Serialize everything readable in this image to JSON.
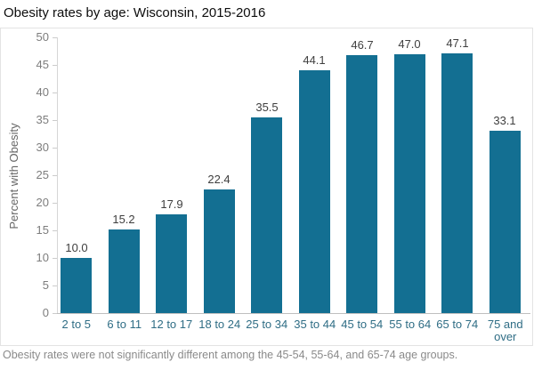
{
  "title": "Obesity rates by age: Wisconsin, 2015-2016",
  "note": "Obesity rates were not significantly different among the 45-54, 55-64, and 65-74 age groups.",
  "colors": {
    "bar": "#136f92",
    "x_label": "#2f6d85",
    "value_label": "#3f3f3f",
    "ytick_label": "#7d7d7d",
    "axis_line": "#bfbfbf",
    "frame_border": "#e3e3e3",
    "note_text": "#8a8a8a"
  },
  "chart_data": {
    "type": "bar",
    "title": "Obesity rates by age: Wisconsin, 2015-2016",
    "categories": [
      "2 to 5",
      "6 to 11",
      "12 to 17",
      "18 to 24",
      "25 to 34",
      "35 to 44",
      "45 to 54",
      "55 to 64",
      "65 to 74",
      "75 and over"
    ],
    "values": [
      10.0,
      15.2,
      17.9,
      22.4,
      35.5,
      44.1,
      46.7,
      47.0,
      47.1,
      33.1
    ],
    "value_labels": [
      "10.0",
      "15.2",
      "17.9",
      "22.4",
      "35.5",
      "44.1",
      "46.7",
      "47.0",
      "47.1",
      "33.1"
    ],
    "xlabel": "",
    "ylabel": "Percent with Obesity",
    "ylim": [
      0,
      50
    ],
    "yticks": [
      0,
      5,
      10,
      15,
      20,
      25,
      30,
      35,
      40,
      45,
      50
    ],
    "grid": false,
    "legend": false,
    "data_labels": true,
    "annotation": "Obesity rates were not significantly different among the 45-54, 55-64, and 65-74 age groups."
  }
}
